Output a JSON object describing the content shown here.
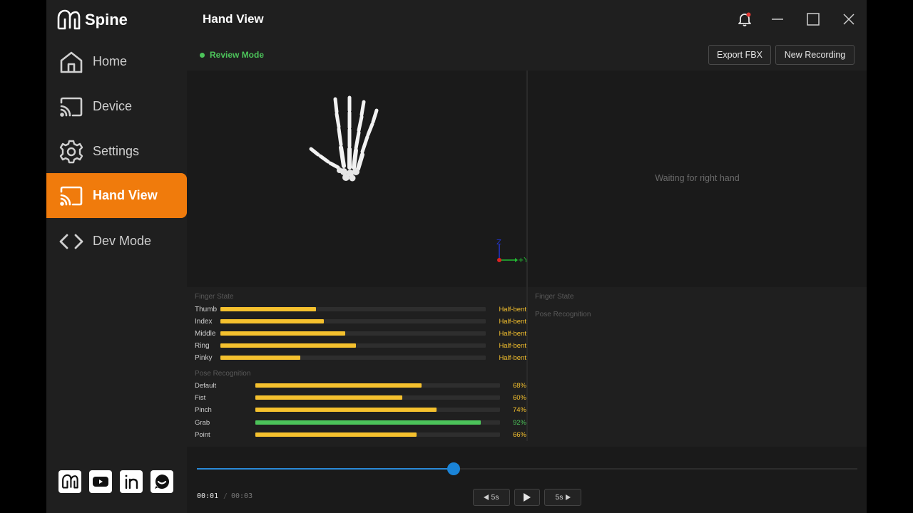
{
  "app": {
    "name": "Spine"
  },
  "header": {
    "title": "Hand View"
  },
  "sidebar": {
    "items": [
      {
        "label": "Home"
      },
      {
        "label": "Device"
      },
      {
        "label": "Settings"
      },
      {
        "label": "Hand View",
        "active": true
      },
      {
        "label": "Dev Mode"
      }
    ]
  },
  "toolbar": {
    "mode_label": "Review Mode",
    "export_label": "Export FBX",
    "new_recording_label": "New Recording"
  },
  "right_viewport": {
    "waiting_text": "Waiting for right hand"
  },
  "axes": {
    "vertical_label": "Z",
    "horizontal_label": "+Y"
  },
  "left_stats": {
    "finger_state_title": "Finger State",
    "fingers": [
      {
        "name": "Thumb",
        "state": "Half-bent",
        "value": 0.36
      },
      {
        "name": "Index",
        "state": "Half-bent",
        "value": 0.39
      },
      {
        "name": "Middle",
        "state": "Half-bent",
        "value": 0.47
      },
      {
        "name": "Ring",
        "state": "Half-bent",
        "value": 0.51
      },
      {
        "name": "Pinky",
        "state": "Half-bent",
        "value": 0.3
      }
    ],
    "pose_title": "Pose Recognition",
    "poses": [
      {
        "name": "Default",
        "percent": "68%",
        "value": 68
      },
      {
        "name": "Fist",
        "percent": "60%",
        "value": 60
      },
      {
        "name": "Pinch",
        "percent": "74%",
        "value": 74
      },
      {
        "name": "Grab",
        "percent": "92%",
        "value": 92,
        "highlight": true
      },
      {
        "name": "Point",
        "percent": "66%",
        "value": 66
      }
    ]
  },
  "right_stats": {
    "finger_state_title": "Finger State",
    "pose_title": "Pose Recognition"
  },
  "timeline": {
    "current_time": "00:01",
    "separator": "/",
    "total_time": "00:03",
    "progress": 0.389,
    "back_label": "5s",
    "forward_label": "5s"
  },
  "colors": {
    "accent": "#f07b0c",
    "bar": "#f5c12e",
    "bar_highlight": "#4cc35a",
    "slider": "#1a84d8",
    "notification_dot": "#e53935"
  },
  "icons": {
    "brand": "spine-logo-icon",
    "nav": [
      "home-icon",
      "cast-icon",
      "gear-icon",
      "cast-icon",
      "code-icon"
    ],
    "window": [
      "bell-icon",
      "minimize-icon",
      "maximize-icon",
      "close-icon"
    ],
    "social": [
      "spine-logo-icon",
      "youtube-icon",
      "linkedin-icon",
      "chat-icon"
    ]
  }
}
